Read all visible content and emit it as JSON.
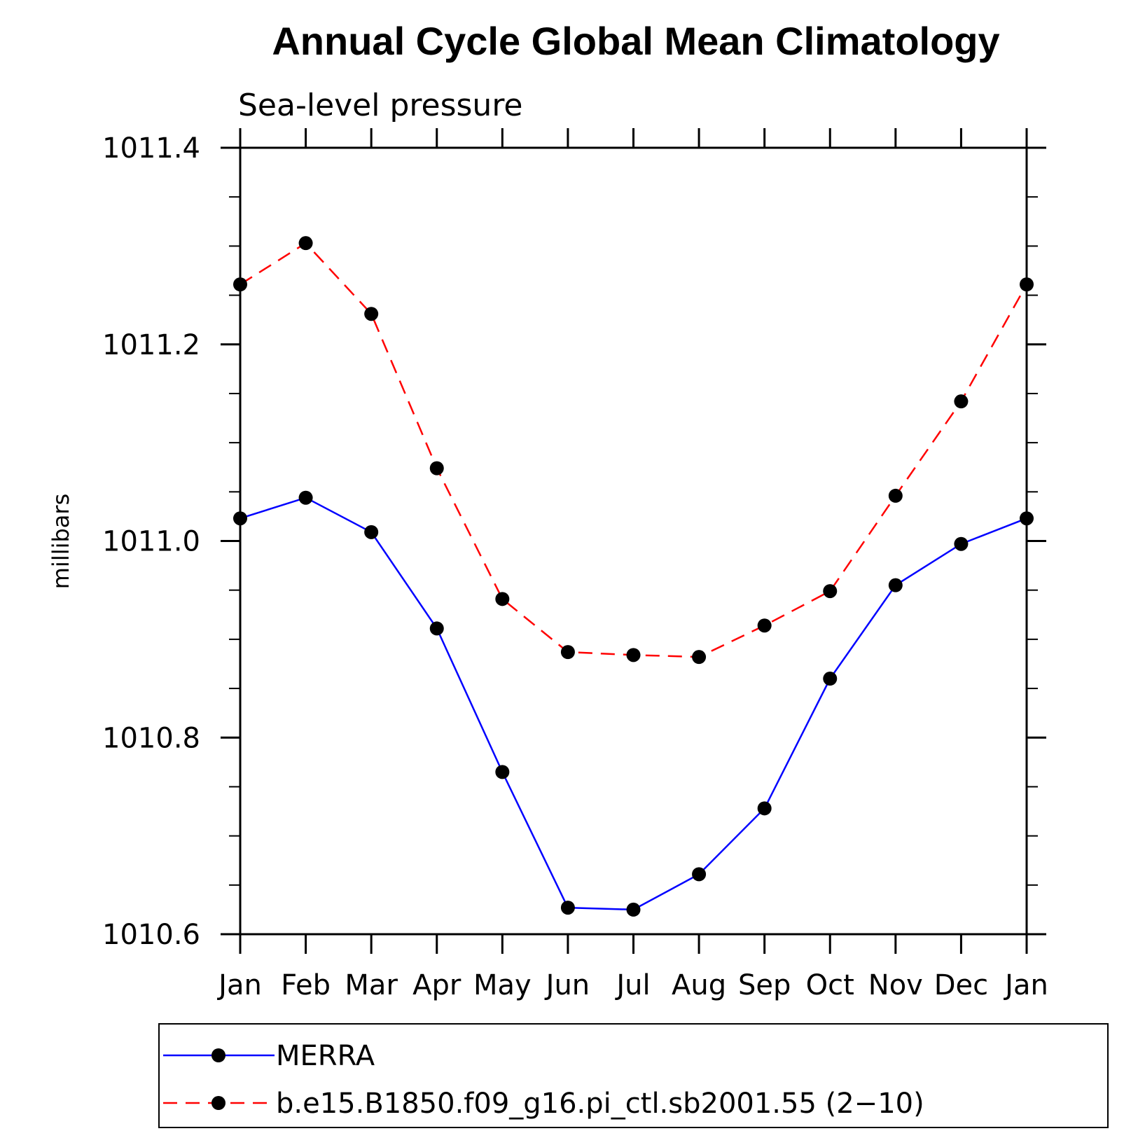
{
  "chart_data": {
    "type": "line",
    "title": "Annual Cycle Global Mean Climatology",
    "subtitle": "Sea-level pressure",
    "ylabel": "millibars",
    "xlabel": "",
    "categories": [
      "Jan",
      "Feb",
      "Mar",
      "Apr",
      "May",
      "Jun",
      "Jul",
      "Aug",
      "Sep",
      "Oct",
      "Nov",
      "Dec",
      "Jan"
    ],
    "ylim": [
      1010.6,
      1011.4
    ],
    "yticks": [
      1010.6,
      1010.8,
      1011.0,
      1011.2,
      1011.4
    ],
    "ytick_labels": [
      "1010.6",
      "1010.8",
      "1011.0",
      "1011.2",
      "1011.4"
    ],
    "grid": false,
    "legend_position": "bottom",
    "series": [
      {
        "name": "MERRA",
        "color": "#0000ff",
        "dash": "solid",
        "marker": "filled-circle",
        "values": [
          1011.023,
          1011.044,
          1011.009,
          1010.911,
          1010.765,
          1010.627,
          1010.625,
          1010.661,
          1010.728,
          1010.86,
          1010.955,
          1010.997,
          1011.023
        ]
      },
      {
        "name": "b.e15.B1850.f09_g16.pi_ctl.sb2001.55 (2−10)",
        "color": "#ff0000",
        "dash": "dashed",
        "marker": "filled-circle",
        "values": [
          1011.261,
          1011.303,
          1011.231,
          1011.074,
          1010.941,
          1010.887,
          1010.884,
          1010.882,
          1010.914,
          1010.949,
          1011.046,
          1011.142,
          1011.261
        ]
      }
    ]
  }
}
